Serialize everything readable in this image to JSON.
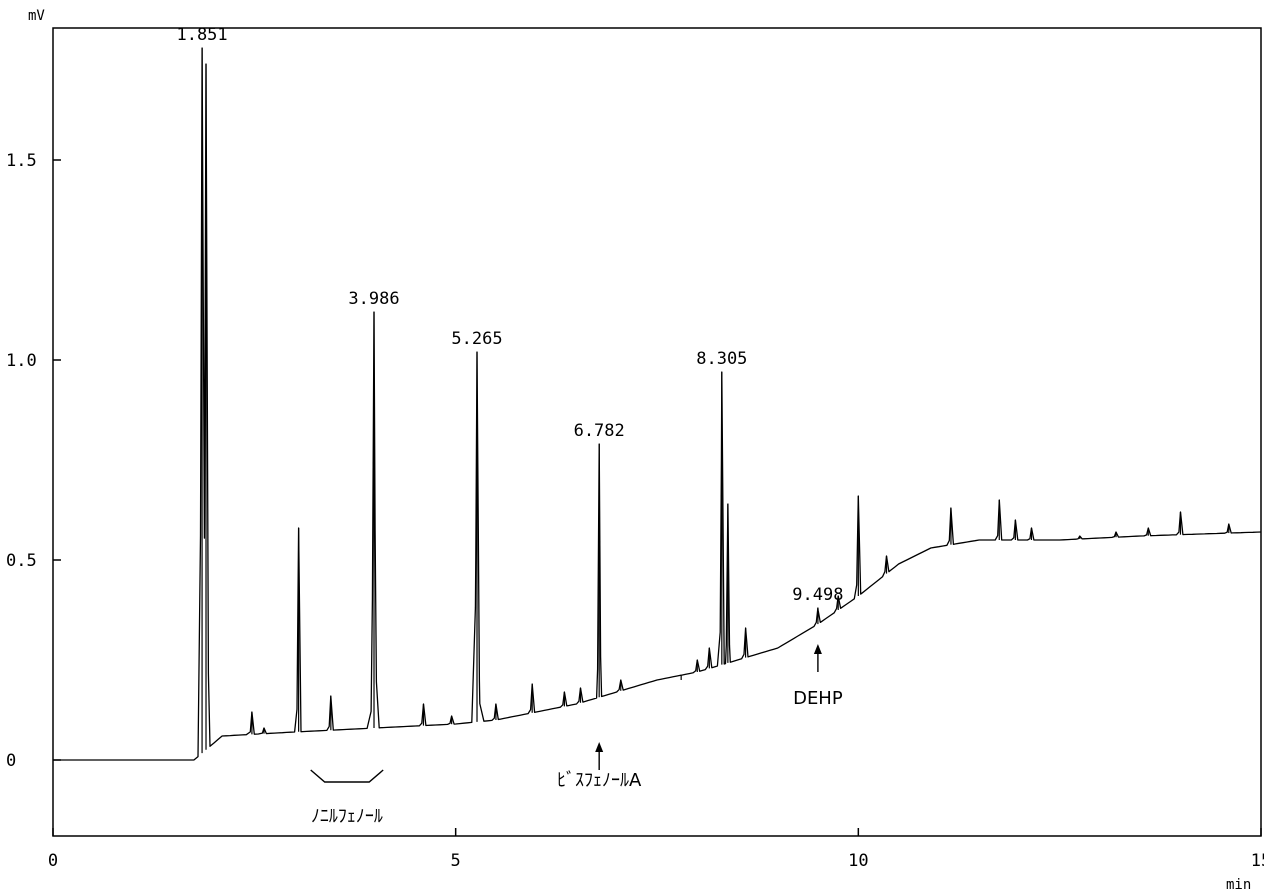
{
  "chart_data": {
    "type": "line",
    "title": "",
    "xlabel": "min",
    "ylabel": "mV",
    "xlim": [
      0,
      15
    ],
    "ylim": [
      -0.19,
      1.83
    ],
    "grid": false,
    "x_ticks": [
      0,
      5,
      10,
      15
    ],
    "x_tick_labels": [
      "0",
      "5",
      "10",
      "15"
    ],
    "y_ticks": [
      0,
      0.5,
      1.0,
      1.5
    ],
    "y_tick_labels": [
      "0",
      "0.5",
      "1.0",
      "1.5"
    ],
    "baseline": [
      [
        0,
        0
      ],
      [
        1.75,
        0
      ],
      [
        2.1,
        0.06
      ],
      [
        3.0,
        0.07
      ],
      [
        4.0,
        0.08
      ],
      [
        5.0,
        0.09
      ],
      [
        5.5,
        0.1
      ],
      [
        6.0,
        0.12
      ],
      [
        6.5,
        0.14
      ],
      [
        7.0,
        0.17
      ],
      [
        7.5,
        0.2
      ],
      [
        8.0,
        0.22
      ],
      [
        8.5,
        0.25
      ],
      [
        9.0,
        0.28
      ],
      [
        9.5,
        0.34
      ],
      [
        10.0,
        0.41
      ],
      [
        10.5,
        0.49
      ],
      [
        10.9,
        0.53
      ],
      [
        11.5,
        0.55
      ],
      [
        12.5,
        0.55
      ],
      [
        13.5,
        0.56
      ],
      [
        15.0,
        0.57
      ]
    ],
    "peaks": [
      {
        "x": 1.851,
        "height": 1.78,
        "label": "1.851"
      },
      {
        "x": 1.9,
        "height": 1.74,
        "label": ""
      },
      {
        "x": 2.47,
        "height": 0.12,
        "label": ""
      },
      {
        "x": 2.62,
        "height": 0.08,
        "label": ""
      },
      {
        "x": 3.05,
        "height": 0.58,
        "label": ""
      },
      {
        "x": 3.45,
        "height": 0.16,
        "label": ""
      },
      {
        "x": 3.986,
        "height": 1.12,
        "label": "3.986"
      },
      {
        "x": 4.6,
        "height": 0.14,
        "label": ""
      },
      {
        "x": 4.95,
        "height": 0.11,
        "label": ""
      },
      {
        "x": 5.265,
        "height": 1.02,
        "label": "5.265"
      },
      {
        "x": 5.5,
        "height": 0.14,
        "label": ""
      },
      {
        "x": 5.95,
        "height": 0.19,
        "label": ""
      },
      {
        "x": 6.35,
        "height": 0.17,
        "label": ""
      },
      {
        "x": 6.55,
        "height": 0.18,
        "label": ""
      },
      {
        "x": 6.782,
        "height": 0.79,
        "label": "6.782"
      },
      {
        "x": 7.05,
        "height": 0.2,
        "label": ""
      },
      {
        "x": 7.8,
        "height": 0.2,
        "label": ""
      },
      {
        "x": 8.0,
        "height": 0.25,
        "label": ""
      },
      {
        "x": 8.15,
        "height": 0.28,
        "label": ""
      },
      {
        "x": 8.305,
        "height": 0.97,
        "label": "8.305"
      },
      {
        "x": 8.38,
        "height": 0.64,
        "label": ""
      },
      {
        "x": 8.6,
        "height": 0.33,
        "label": ""
      },
      {
        "x": 9.498,
        "height": 0.38,
        "label": "9.498"
      },
      {
        "x": 9.75,
        "height": 0.41,
        "label": ""
      },
      {
        "x": 10.0,
        "height": 0.66,
        "label": ""
      },
      {
        "x": 10.35,
        "height": 0.51,
        "label": ""
      },
      {
        "x": 11.15,
        "height": 0.63,
        "label": ""
      },
      {
        "x": 11.75,
        "height": 0.65,
        "label": ""
      },
      {
        "x": 11.95,
        "height": 0.6,
        "label": ""
      },
      {
        "x": 12.15,
        "height": 0.58,
        "label": ""
      },
      {
        "x": 12.75,
        "height": 0.56,
        "label": ""
      },
      {
        "x": 13.2,
        "height": 0.57,
        "label": ""
      },
      {
        "x": 13.6,
        "height": 0.58,
        "label": ""
      },
      {
        "x": 14.0,
        "height": 0.62,
        "label": ""
      },
      {
        "x": 14.6,
        "height": 0.59,
        "label": ""
      }
    ],
    "annotations": {
      "nonylphenol": {
        "text": "ﾉﾆﾙﾌｪﾉｰﾙ",
        "x_from": 3.2,
        "x_to": 4.1
      },
      "bisphenol": {
        "text": "ﾋﾞｽﾌｪﾉｰﾙA",
        "x": 6.782
      },
      "dehp": {
        "text": "DEHP",
        "x": 9.498
      }
    }
  }
}
